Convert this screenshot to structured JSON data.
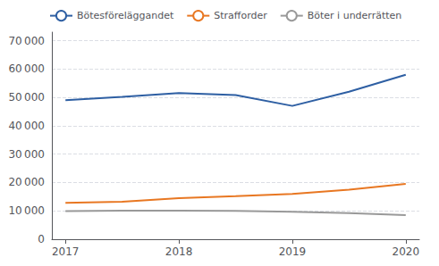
{
  "chart_data": {
    "type": "line",
    "x": [
      2017,
      2017.5,
      2018,
      2018.5,
      2019,
      2019.5,
      2020
    ],
    "series": [
      {
        "name": "Bötesföreläggandet",
        "color": "#2e5fa3",
        "values": [
          49000,
          50200,
          51500,
          50800,
          47000,
          52000,
          58000
        ]
      },
      {
        "name": "Strafforder",
        "color": "#e87722",
        "values": [
          12800,
          13200,
          14500,
          15200,
          16000,
          17500,
          19500
        ]
      },
      {
        "name": "Böter i underrätten",
        "color": "#999999",
        "values": [
          9900,
          10100,
          10100,
          10000,
          9700,
          9200,
          8500
        ]
      }
    ],
    "xlim": [
      2016.88,
      2020.12
    ],
    "xticks": [
      2017,
      2018,
      2019,
      2020
    ],
    "ylim": [
      0,
      73000
    ],
    "yticks": [
      0,
      {
        "value": 10000,
        "label": "10 000"
      },
      {
        "value": 20000,
        "label": "20 000"
      },
      {
        "value": 30000,
        "label": "30 000"
      },
      {
        "value": 40000,
        "label": "40 000"
      },
      {
        "value": 50000,
        "label": "50 000"
      },
      {
        "value": 60000,
        "label": "60 000"
      },
      {
        "value": 70000,
        "label": "70 000"
      }
    ],
    "grid": true,
    "legend": "upper left"
  }
}
